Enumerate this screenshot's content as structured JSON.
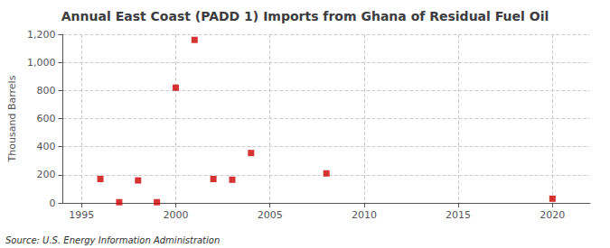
{
  "chart_data": {
    "type": "scatter",
    "title": "Annual East Coast (PADD 1) Imports from Ghana of Residual Fuel Oil",
    "ylabel": "Thousand Barrels",
    "annotations": [
      "Source: U.S. Energy Information Administration"
    ],
    "x": [
      1996,
      1997,
      1998,
      1999,
      2000,
      2001,
      2002,
      2003,
      2004,
      2008,
      2020
    ],
    "values": [
      170,
      5,
      160,
      5,
      820,
      1160,
      170,
      165,
      355,
      210,
      30
    ],
    "color": "#cc0000",
    "marker": "square",
    "xlim": [
      1994,
      2022
    ],
    "ylim": [
      0,
      1200
    ],
    "xticks": [
      1995,
      2000,
      2005,
      2010,
      2015,
      2020
    ],
    "yticks": [
      0,
      200,
      400,
      600,
      800,
      {
        "value": 1000,
        "label": "1,000"
      },
      {
        "value": 1200,
        "label": "1,200"
      }
    ],
    "grid": true
  }
}
